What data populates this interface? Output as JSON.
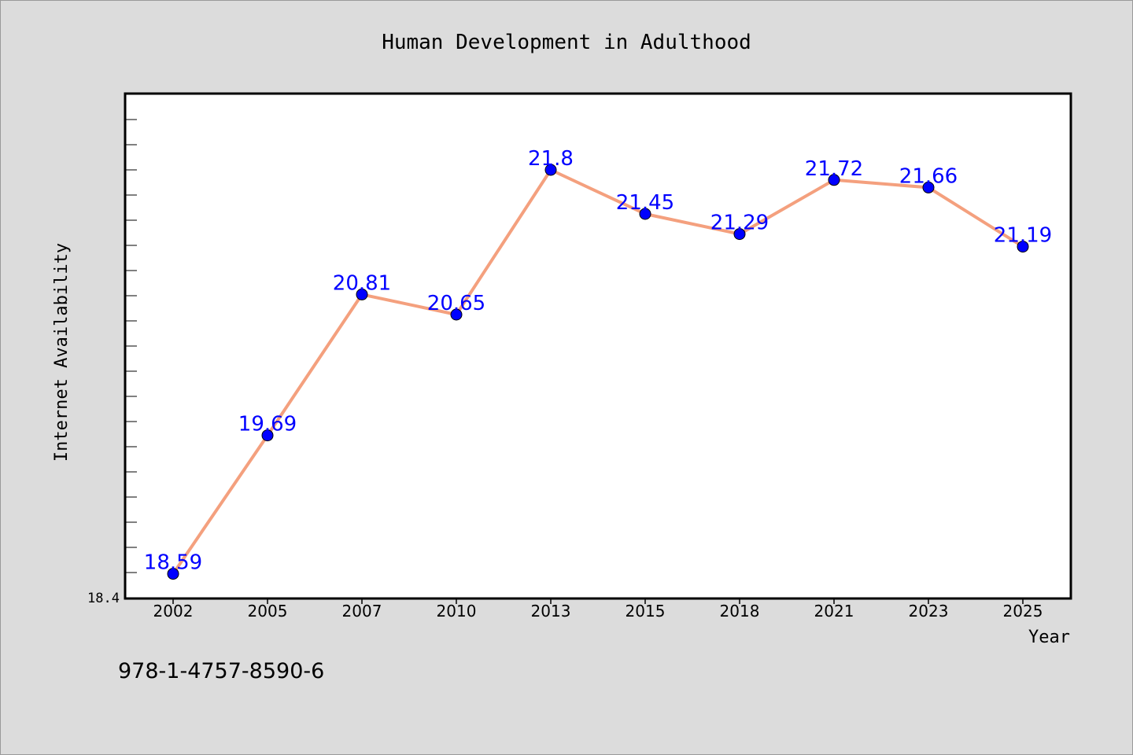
{
  "chart_data": {
    "type": "line",
    "title": "Human Development in Adulthood",
    "xlabel": "Year",
    "ylabel": "Internet Availability",
    "categories": [
      "2002",
      "2005",
      "2007",
      "2010",
      "2013",
      "2015",
      "2018",
      "2021",
      "2023",
      "2025"
    ],
    "series": [
      {
        "name": "",
        "values": [
          18.59,
          19.69,
          20.81,
          20.65,
          21.8,
          21.45,
          21.29,
          21.72,
          21.66,
          21.19
        ],
        "data_labels": [
          "18.59",
          "19.69",
          "20.81",
          "20.65",
          "21.8",
          "21.45",
          "21.29",
          "21.72",
          "21.66",
          "21.19"
        ],
        "line_color": "#f4a07e",
        "marker_color": "#0000ff",
        "label_color": "#0000ff"
      }
    ],
    "ylim": [
      18.4,
      22.4
    ],
    "y_tick_label": "18.4",
    "y_minor_step": 0.2,
    "grid": false,
    "legend": "none"
  },
  "footer": {
    "isbn": "978-1-4757-8590-6"
  },
  "colors": {
    "background": "#dcdcdc",
    "plot_background": "#ffffff",
    "axis": "#000000"
  }
}
